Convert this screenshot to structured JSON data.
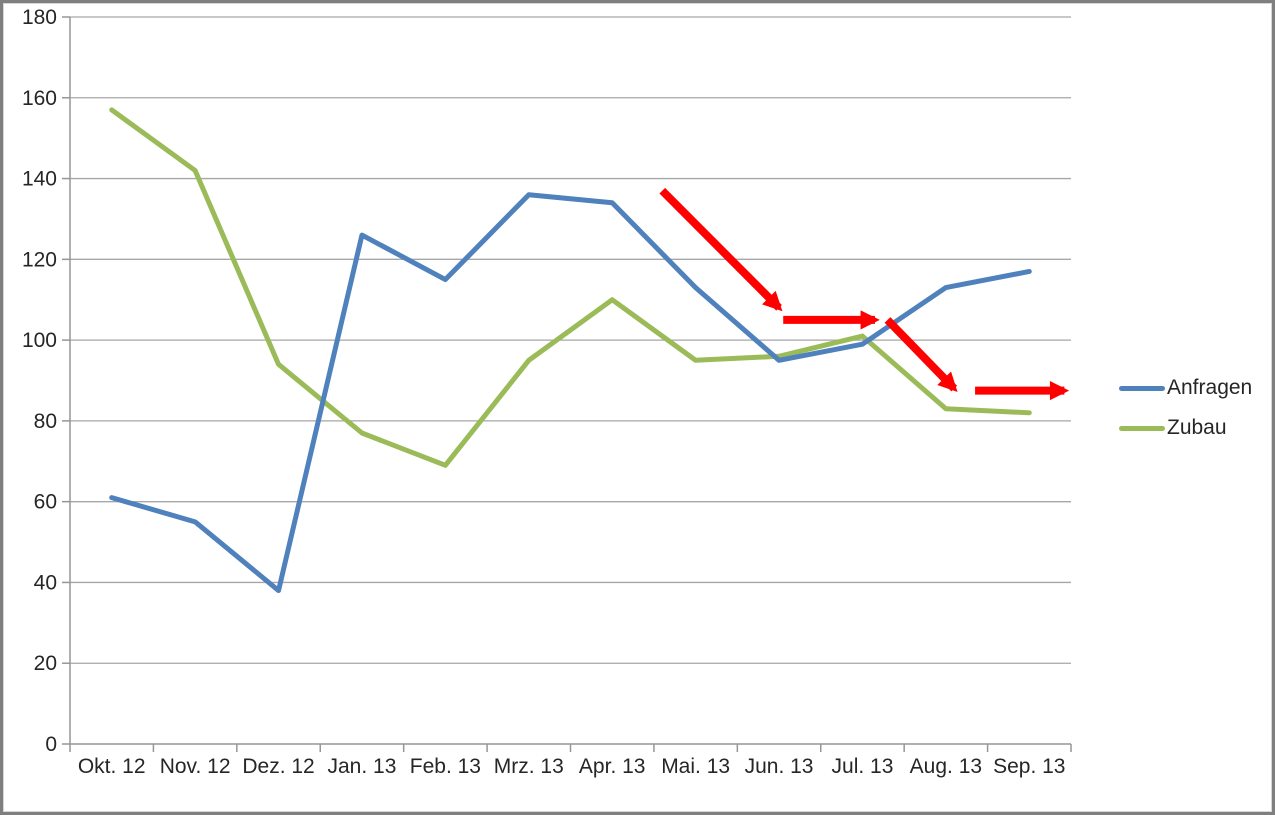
{
  "chart_data": {
    "type": "line",
    "title": "",
    "xlabel": "",
    "ylabel": "",
    "categories": [
      "Okt. 12",
      "Nov. 12",
      "Dez. 12",
      "Jan. 13",
      "Feb. 13",
      "Mrz. 13",
      "Apr. 13",
      "Mai. 13",
      "Jun. 13",
      "Jul. 13",
      "Aug. 13",
      "Sep. 13"
    ],
    "series": [
      {
        "name": "Anfragen",
        "color": "#4F81BD",
        "values": [
          61,
          55,
          38,
          126,
          115,
          136,
          134,
          113,
          95,
          99,
          113,
          117
        ]
      },
      {
        "name": "Zubau",
        "color": "#9BBB59",
        "values": [
          157,
          142,
          94,
          77,
          69,
          95,
          110,
          95,
          96,
          101,
          83,
          82
        ]
      }
    ],
    "ylim": [
      0,
      180
    ],
    "yticks": [
      0,
      20,
      40,
      60,
      80,
      100,
      120,
      140,
      160,
      180
    ],
    "grid": true,
    "legend_position": "right",
    "annotations": [
      {
        "type": "arrow",
        "color": "#FF0000",
        "from": {
          "month": 6.6,
          "value": 137.0
        },
        "to": {
          "month": 8.0,
          "value": 108.0
        }
      },
      {
        "type": "arrow",
        "color": "#FF0000",
        "from": {
          "month": 8.05,
          "value": 105.0
        },
        "to": {
          "month": 9.15,
          "value": 105.0
        }
      },
      {
        "type": "arrow",
        "color": "#FF0000",
        "from": {
          "month": 9.3,
          "value": 105.0
        },
        "to": {
          "month": 10.1,
          "value": 88.0
        }
      },
      {
        "type": "arrow",
        "color": "#FF0000",
        "from": {
          "month": 10.35,
          "value": 87.5
        },
        "to": {
          "month": 11.42,
          "value": 87.5
        }
      }
    ]
  },
  "styles": {
    "grid_color": "#A6A6A6",
    "axis_color": "#969696",
    "text_color": "#262626",
    "frame_border_color": "#7F7F7F",
    "background": "#FFFFFF"
  }
}
